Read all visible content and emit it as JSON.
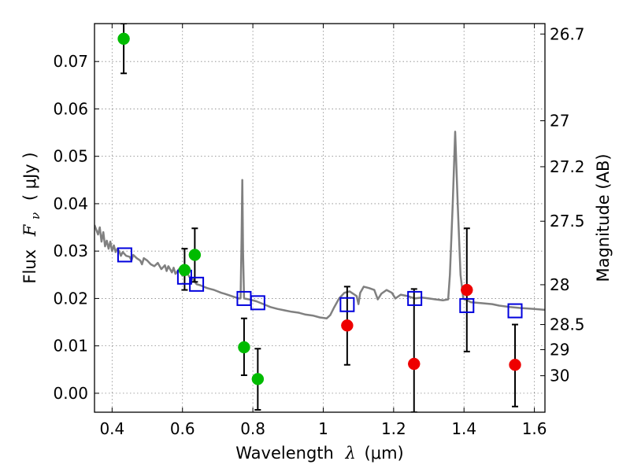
{
  "chart_data": {
    "type": "scatter",
    "xlabel": {
      "prefix": "Wavelength",
      "symbol": "λ",
      "unit": "(μm)"
    },
    "ylabel": {
      "prefix": "Flux",
      "symbol": "F",
      "sub": "ν",
      "unit": "( μJy )"
    },
    "y2label": "Magnitude (AB)",
    "xlim": [
      0.35,
      1.63
    ],
    "ylim": [
      -0.004,
      0.078
    ],
    "x_ticks": [
      0.4,
      0.6,
      0.8,
      1.0,
      1.2,
      1.4,
      1.6
    ],
    "x_tick_labels": [
      "0.4",
      "0.6",
      "0.8",
      "1",
      "1.2",
      "1.4",
      "1.6"
    ],
    "y_ticks": [
      0.0,
      0.01,
      0.02,
      0.03,
      0.04,
      0.05,
      0.06,
      0.07
    ],
    "y_tick_labels": [
      "0.00",
      "0.01",
      "0.02",
      "0.03",
      "0.04",
      "0.05",
      "0.06",
      "0.07"
    ],
    "y2_ticks": [
      {
        "label": "26.7",
        "flux": 0.0758
      },
      {
        "label": "27",
        "flux": 0.0575
      },
      {
        "label": "27.2",
        "flux": 0.0478
      },
      {
        "label": "27.5",
        "flux": 0.0363
      },
      {
        "label": "28",
        "flux": 0.0229
      },
      {
        "label": "28.5",
        "flux": 0.0145
      },
      {
        "label": "29",
        "flux": 0.0092
      },
      {
        "label": "30",
        "flux": 0.0037
      }
    ],
    "grid": true,
    "colors": {
      "green": "#00bb00",
      "red": "#ee0000",
      "blue": "#0000dd",
      "model": "#808080",
      "errorbar": "#000000",
      "grid": "#888888"
    },
    "series": [
      {
        "marker": "circle",
        "color": "green",
        "points": [
          {
            "x": 0.433,
            "y": 0.0748,
            "ylo": 0.0675,
            "yhi": 0.078
          },
          {
            "x": 0.606,
            "y": 0.026,
            "ylo": 0.0218,
            "yhi": 0.0305
          },
          {
            "x": 0.635,
            "y": 0.0292,
            "ylo": 0.0235,
            "yhi": 0.0348
          },
          {
            "x": 0.775,
            "y": 0.0097,
            "ylo": 0.0038,
            "yhi": 0.0158
          },
          {
            "x": 0.814,
            "y": 0.003,
            "ylo": -0.0035,
            "yhi": 0.0094
          }
        ]
      },
      {
        "marker": "circle",
        "color": "red",
        "points": [
          {
            "x": 1.068,
            "y": 0.0143,
            "ylo": 0.006,
            "yhi": 0.0225
          },
          {
            "x": 1.258,
            "y": 0.0062,
            "ylo": -0.004,
            "yhi": 0.022
          },
          {
            "x": 1.408,
            "y": 0.0218,
            "ylo": 0.0088,
            "yhi": 0.0348
          },
          {
            "x": 1.545,
            "y": 0.006,
            "ylo": -0.0028,
            "yhi": 0.0145
          }
        ]
      },
      {
        "marker": "square",
        "color": "blue",
        "points": [
          {
            "x": 0.436,
            "y": 0.0292
          },
          {
            "x": 0.606,
            "y": 0.0245
          },
          {
            "x": 0.64,
            "y": 0.023
          },
          {
            "x": 0.775,
            "y": 0.02
          },
          {
            "x": 0.814,
            "y": 0.0191
          },
          {
            "x": 1.068,
            "y": 0.0187
          },
          {
            "x": 1.26,
            "y": 0.02
          },
          {
            "x": 1.408,
            "y": 0.0185
          },
          {
            "x": 1.545,
            "y": 0.0174
          }
        ]
      }
    ],
    "model_spectrum": {
      "color": "model",
      "points": [
        [
          0.35,
          0.0355
        ],
        [
          0.36,
          0.0335
        ],
        [
          0.365,
          0.035
        ],
        [
          0.37,
          0.032
        ],
        [
          0.375,
          0.034
        ],
        [
          0.38,
          0.031
        ],
        [
          0.385,
          0.0322
        ],
        [
          0.39,
          0.0305
        ],
        [
          0.395,
          0.032
        ],
        [
          0.4,
          0.03
        ],
        [
          0.405,
          0.0312
        ],
        [
          0.41,
          0.0298
        ],
        [
          0.415,
          0.0305
        ],
        [
          0.42,
          0.03
        ],
        [
          0.425,
          0.029
        ],
        [
          0.43,
          0.0298
        ],
        [
          0.44,
          0.029
        ],
        [
          0.45,
          0.0288
        ],
        [
          0.455,
          0.028
        ],
        [
          0.46,
          0.0292
        ],
        [
          0.47,
          0.0285
        ],
        [
          0.48,
          0.028
        ],
        [
          0.485,
          0.0272
        ],
        [
          0.49,
          0.0285
        ],
        [
          0.5,
          0.028
        ],
        [
          0.51,
          0.0272
        ],
        [
          0.52,
          0.0268
        ],
        [
          0.53,
          0.0275
        ],
        [
          0.54,
          0.0262
        ],
        [
          0.55,
          0.027
        ],
        [
          0.555,
          0.0258
        ],
        [
          0.56,
          0.0268
        ],
        [
          0.57,
          0.0255
        ],
        [
          0.575,
          0.0265
        ],
        [
          0.58,
          0.0252
        ],
        [
          0.59,
          0.0262
        ],
        [
          0.6,
          0.0248
        ],
        [
          0.61,
          0.0258
        ],
        [
          0.62,
          0.0245
        ],
        [
          0.63,
          0.024
        ],
        [
          0.64,
          0.023
        ],
        [
          0.65,
          0.0228
        ],
        [
          0.66,
          0.0225
        ],
        [
          0.67,
          0.0222
        ],
        [
          0.68,
          0.022
        ],
        [
          0.69,
          0.0218
        ],
        [
          0.7,
          0.0215
        ],
        [
          0.71,
          0.0212
        ],
        [
          0.72,
          0.021
        ],
        [
          0.74,
          0.0205
        ],
        [
          0.76,
          0.02
        ],
        [
          0.765,
          0.02
        ],
        [
          0.768,
          0.033
        ],
        [
          0.77,
          0.045
        ],
        [
          0.772,
          0.03
        ],
        [
          0.775,
          0.02
        ],
        [
          0.79,
          0.0198
        ],
        [
          0.81,
          0.0194
        ],
        [
          0.83,
          0.0188
        ],
        [
          0.85,
          0.0182
        ],
        [
          0.87,
          0.0178
        ],
        [
          0.89,
          0.0175
        ],
        [
          0.91,
          0.0172
        ],
        [
          0.93,
          0.017
        ],
        [
          0.95,
          0.0166
        ],
        [
          0.97,
          0.0164
        ],
        [
          0.99,
          0.016
        ],
        [
          1.01,
          0.0158
        ],
        [
          1.02,
          0.0165
        ],
        [
          1.03,
          0.018
        ],
        [
          1.045,
          0.02
        ],
        [
          1.06,
          0.0212
        ],
        [
          1.075,
          0.0215
        ],
        [
          1.085,
          0.021
        ],
        [
          1.095,
          0.0205
        ],
        [
          1.1,
          0.0188
        ],
        [
          1.105,
          0.0212
        ],
        [
          1.115,
          0.0225
        ],
        [
          1.13,
          0.0222
        ],
        [
          1.145,
          0.0218
        ],
        [
          1.155,
          0.0198
        ],
        [
          1.165,
          0.021
        ],
        [
          1.18,
          0.0218
        ],
        [
          1.195,
          0.0212
        ],
        [
          1.205,
          0.02
        ],
        [
          1.22,
          0.0208
        ],
        [
          1.24,
          0.0205
        ],
        [
          1.26,
          0.02
        ],
        [
          1.28,
          0.0202
        ],
        [
          1.3,
          0.02
        ],
        [
          1.32,
          0.0198
        ],
        [
          1.34,
          0.0196
        ],
        [
          1.355,
          0.0198
        ],
        [
          1.36,
          0.025
        ],
        [
          1.368,
          0.04
        ],
        [
          1.375,
          0.0552
        ],
        [
          1.382,
          0.04
        ],
        [
          1.39,
          0.025
        ],
        [
          1.398,
          0.02
        ],
        [
          1.42,
          0.0192
        ],
        [
          1.45,
          0.019
        ],
        [
          1.48,
          0.0188
        ],
        [
          1.5,
          0.0185
        ],
        [
          1.53,
          0.0182
        ],
        [
          1.56,
          0.018
        ],
        [
          1.6,
          0.0178
        ],
        [
          1.63,
          0.0176
        ]
      ]
    }
  }
}
